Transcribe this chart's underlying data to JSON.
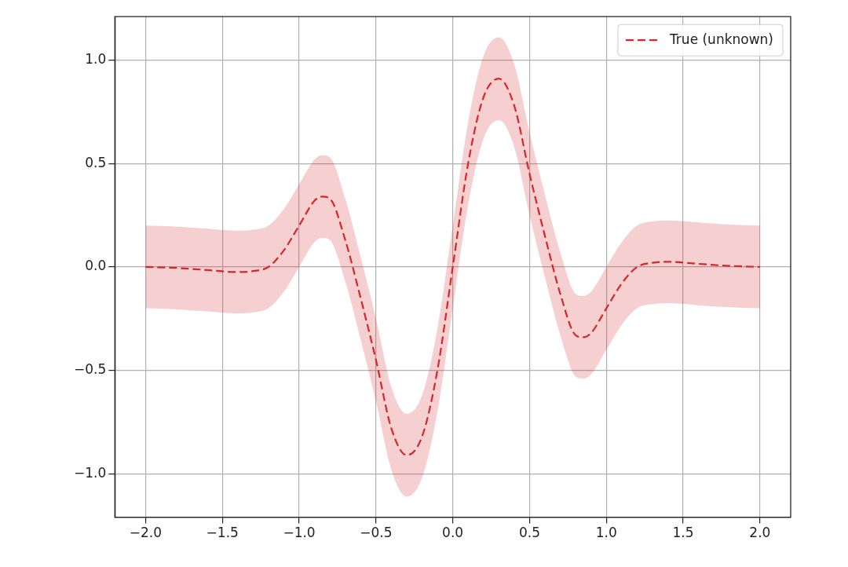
{
  "chart_data": {
    "type": "line",
    "x": [
      -2,
      -1.8,
      -1.6,
      -1.4,
      -1.3,
      -1.2,
      -1.1,
      -1,
      -0.9,
      -0.85,
      -0.8,
      -0.7,
      -0.6,
      -0.5,
      -0.4,
      -0.3,
      -0.2,
      -0.1,
      0,
      0.1,
      0.2,
      0.3,
      0.4,
      0.5,
      0.6,
      0.7,
      0.8,
      0.85,
      0.9,
      1,
      1.1,
      1.2,
      1.3,
      1.4,
      1.6,
      1.8,
      2
    ],
    "series": [
      {
        "name": "True (unknown)",
        "color": "#d62728",
        "line_style": "dashed",
        "values": [
          0,
          -0.005,
          -0.015,
          -0.025,
          -0.02,
          0,
          0.08,
          0.2,
          0.32,
          0.34,
          0.33,
          0.13,
          -0.15,
          -0.45,
          -0.78,
          -0.91,
          -0.82,
          -0.5,
          0,
          0.5,
          0.82,
          0.91,
          0.78,
          0.45,
          0.15,
          -0.13,
          -0.33,
          -0.34,
          -0.32,
          -0.2,
          -0.08,
          0,
          0.02,
          0.025,
          0.015,
          0.005,
          0
        ],
        "lower": [
          -0.2,
          -0.205,
          -0.215,
          -0.225,
          -0.22,
          -0.2,
          -0.12,
          0,
          0.12,
          0.14,
          0.13,
          -0.07,
          -0.35,
          -0.65,
          -0.98,
          -1.11,
          -1.02,
          -0.7,
          -0.2,
          0.3,
          0.62,
          0.71,
          0.58,
          0.25,
          -0.05,
          -0.33,
          -0.53,
          -0.54,
          -0.52,
          -0.4,
          -0.28,
          -0.2,
          -0.18,
          -0.175,
          -0.185,
          -0.195,
          -0.2
        ],
        "upper": [
          0.2,
          0.195,
          0.185,
          0.175,
          0.18,
          0.2,
          0.28,
          0.4,
          0.52,
          0.54,
          0.53,
          0.33,
          0.05,
          -0.25,
          -0.58,
          -0.71,
          -0.62,
          -0.3,
          0.2,
          0.7,
          1.02,
          1.11,
          0.98,
          0.65,
          0.35,
          0.07,
          -0.13,
          -0.14,
          -0.12,
          0,
          0.12,
          0.2,
          0.22,
          0.225,
          0.215,
          0.205,
          0.2
        ]
      }
    ],
    "xlim": [
      -2.2,
      2.2
    ],
    "ylim": [
      -1.21,
      1.21
    ],
    "xticks": [
      {
        "value": -2,
        "label": "−2.0"
      },
      {
        "value": -1.5,
        "label": "−1.5"
      },
      {
        "value": -1,
        "label": "−1.0"
      },
      {
        "value": -0.5,
        "label": "−0.5"
      },
      {
        "value": 0,
        "label": "0.0"
      },
      {
        "value": 0.5,
        "label": "0.5"
      },
      {
        "value": 1,
        "label": "1.0"
      },
      {
        "value": 1.5,
        "label": "1.5"
      },
      {
        "value": 2,
        "label": "2.0"
      }
    ],
    "yticks": [
      {
        "value": -1,
        "label": "−1.0"
      },
      {
        "value": -0.5,
        "label": "−0.5"
      },
      {
        "value": 0,
        "label": "0.0"
      },
      {
        "value": 0.5,
        "label": "0.5"
      },
      {
        "value": 1,
        "label": "1.0"
      }
    ],
    "grid": true,
    "legend": "top right",
    "marker": "none"
  }
}
